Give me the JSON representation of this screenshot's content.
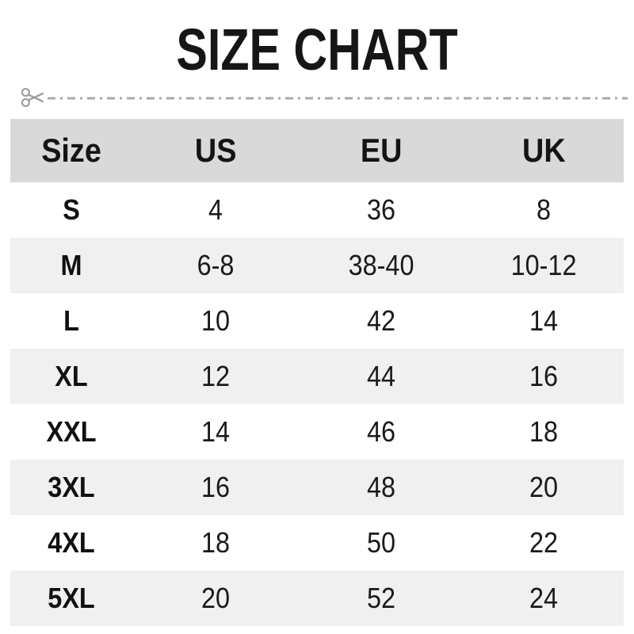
{
  "title": "SIZE CHART",
  "cut_line": {
    "icon": "scissors-icon"
  },
  "table": {
    "headers": [
      "Size",
      "US",
      "EU",
      "UK"
    ],
    "rows": [
      [
        "S",
        "4",
        "36",
        "8"
      ],
      [
        "M",
        "6-8",
        "38-40",
        "10-12"
      ],
      [
        "L",
        "10",
        "42",
        "14"
      ],
      [
        "XL",
        "12",
        "44",
        "16"
      ],
      [
        "XXL",
        "14",
        "46",
        "18"
      ],
      [
        "3XL",
        "16",
        "48",
        "20"
      ],
      [
        "4XL",
        "18",
        "50",
        "22"
      ],
      [
        "5XL",
        "20",
        "52",
        "24"
      ]
    ]
  },
  "colors": {
    "header_bg": "#d9d9d9",
    "alt_row_bg": "#f1f0f0",
    "text": "#111111",
    "cut_line_gray": "#a8a8a8",
    "scissors_gray": "#9e9e9e"
  }
}
